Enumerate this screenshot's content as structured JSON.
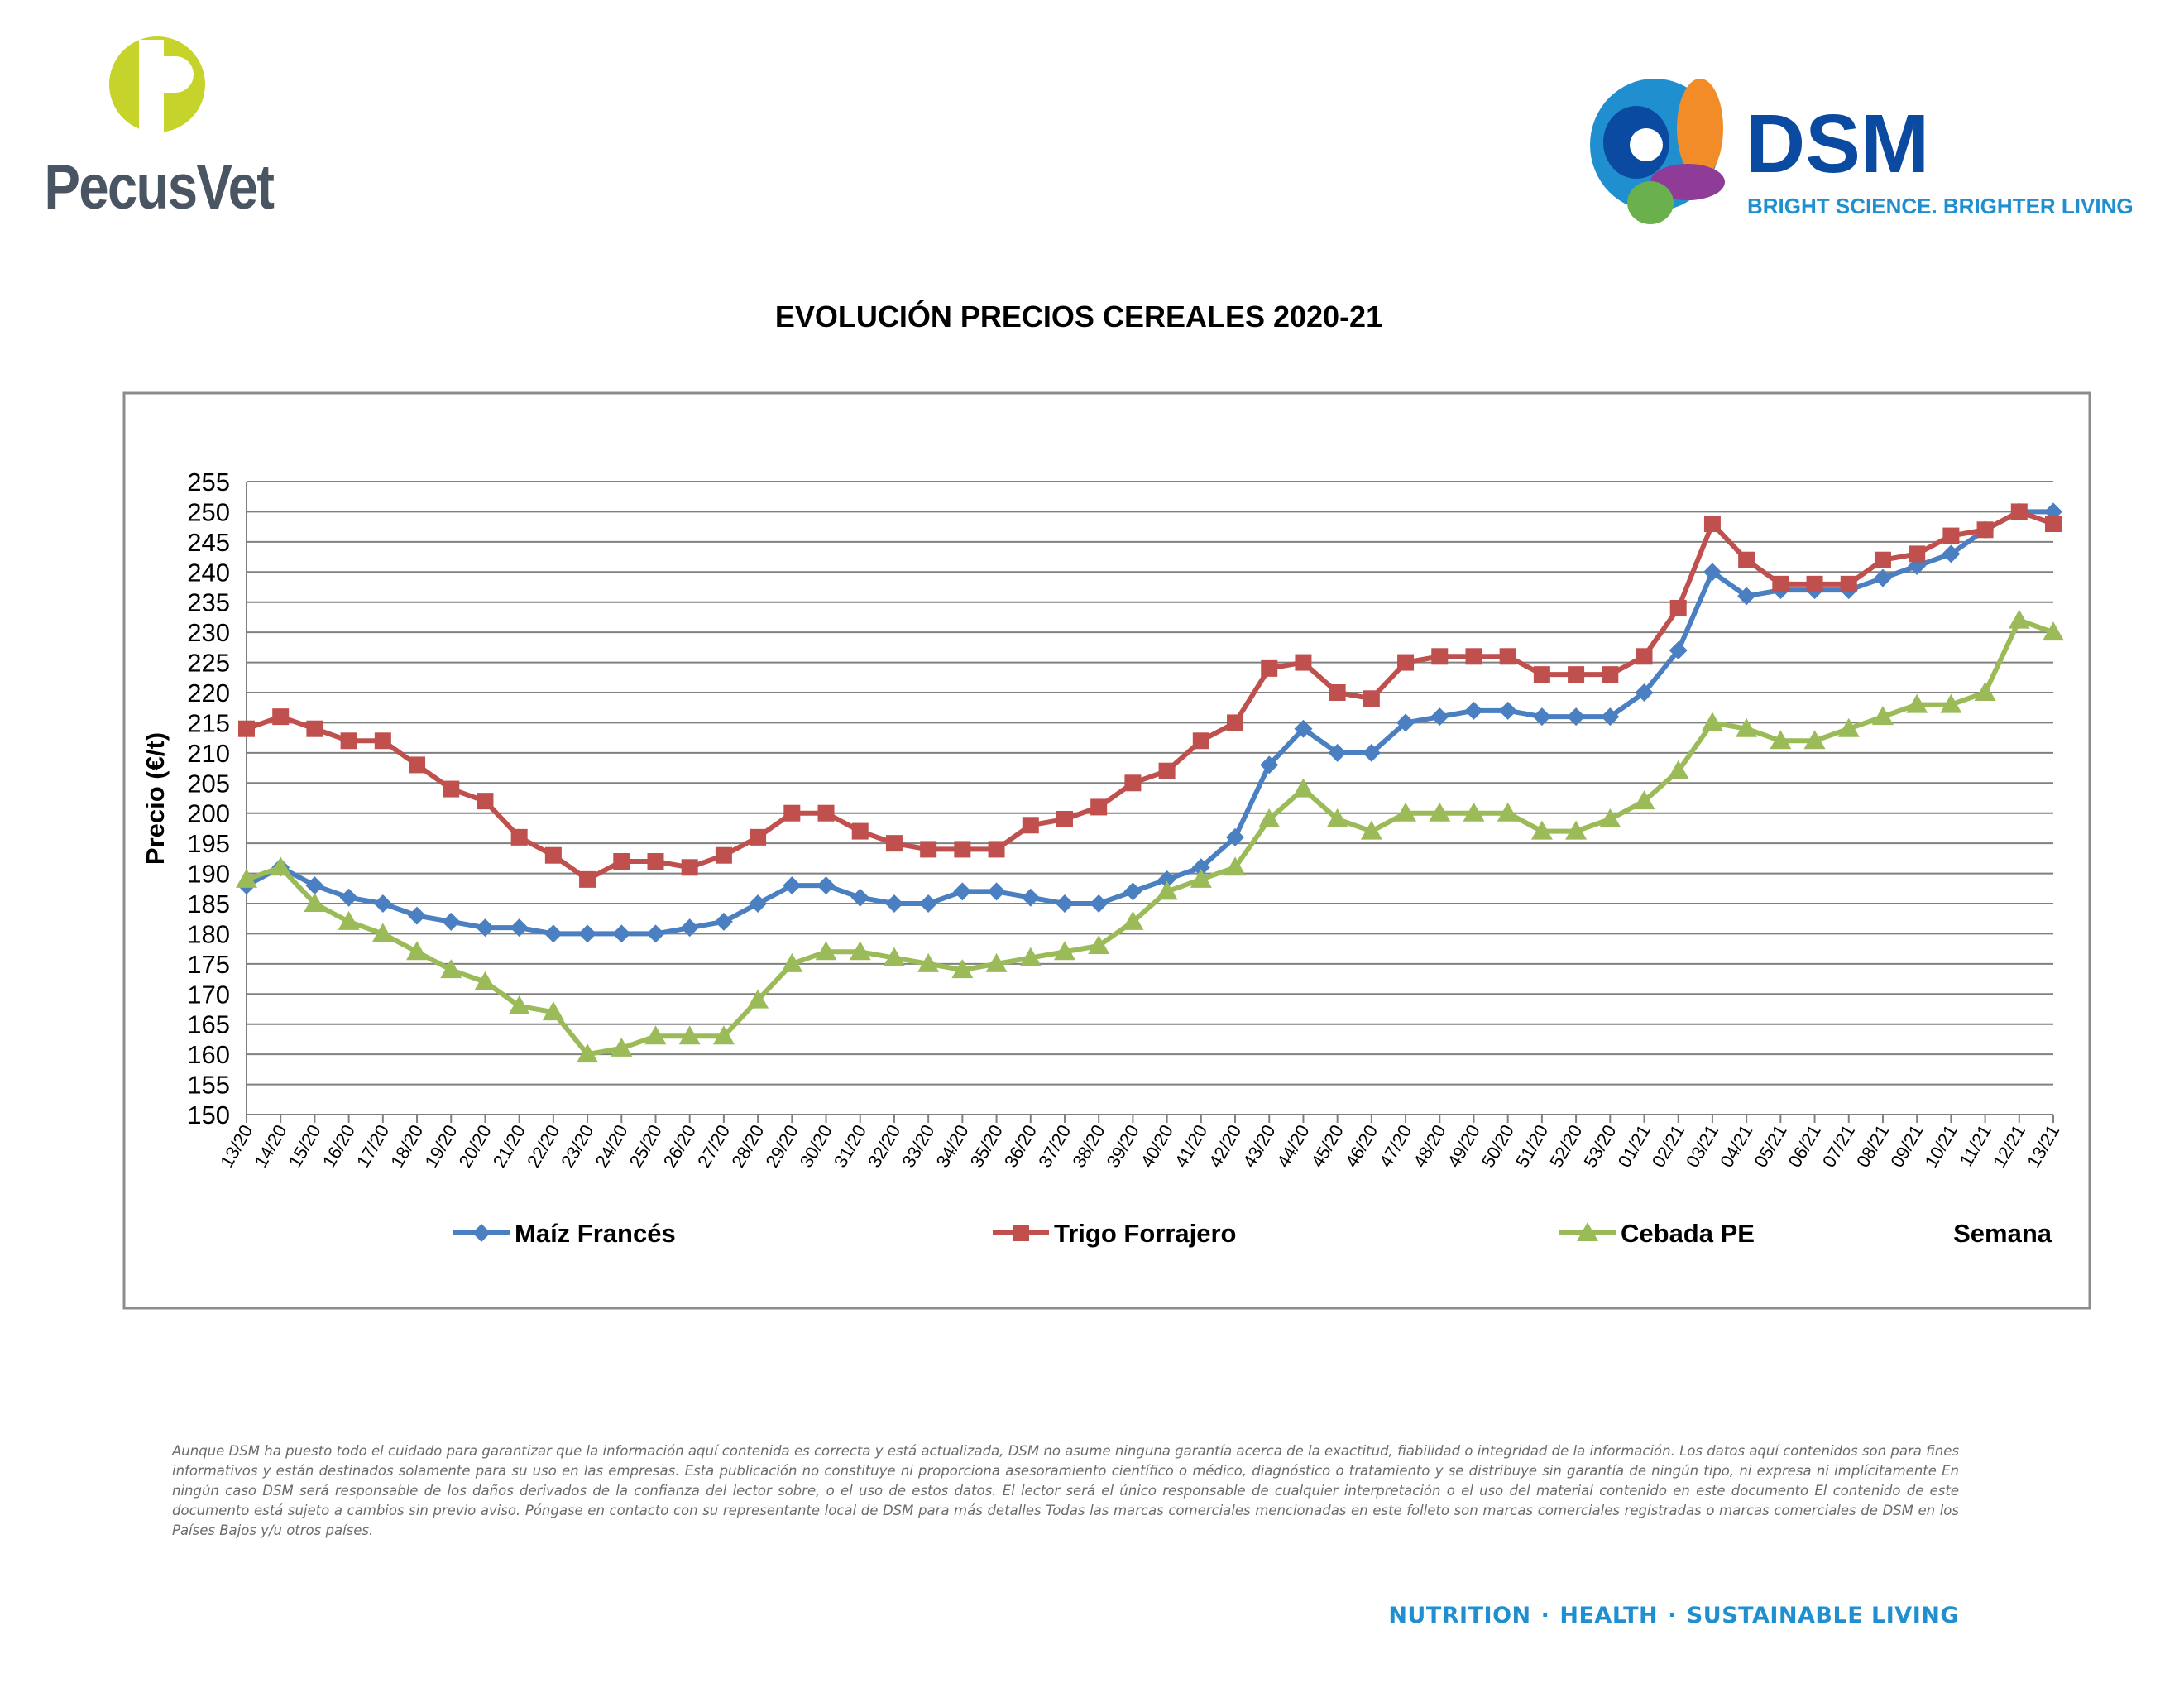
{
  "brand_left": {
    "name": "PecusVet",
    "letter": "P",
    "colors": {
      "green": "#c5d32a",
      "gray": "#4a5563"
    }
  },
  "brand_right": {
    "name": "DSM",
    "slogan": "BRIGHT SCIENCE. BRIGHTER LIVING.",
    "colors": {
      "blue": "#0a4aa0",
      "light_blue": "#1f8fd0"
    }
  },
  "chart_data": {
    "type": "line",
    "title": "EVOLUCIÓN PRECIOS CEREALES 2020-21",
    "ylabel": "Precio (€/t)",
    "xlabel": "Semana",
    "ylim": [
      150,
      255
    ],
    "ytick_step": 5,
    "grid": true,
    "legend_position": "bottom",
    "categories": [
      "13/20",
      "14/20",
      "15/20",
      "16/20",
      "17/20",
      "18/20",
      "19/20",
      "20/20",
      "21/20",
      "22/20",
      "23/20",
      "24/20",
      "25/20",
      "26/20",
      "27/20",
      "28/20",
      "29/20",
      "30/20",
      "31/20",
      "32/20",
      "33/20",
      "34/20",
      "35/20",
      "36/20",
      "37/20",
      "38/20",
      "39/20",
      "40/20",
      "41/20",
      "42/20",
      "43/20",
      "44/20",
      "45/20",
      "46/20",
      "47/20",
      "48/20",
      "49/20",
      "50/20",
      "51/20",
      "52/20",
      "53/20",
      "01/21",
      "02/21",
      "03/21",
      "04/21",
      "05/21",
      "06/21",
      "07/21",
      "08/21",
      "09/21",
      "10/21",
      "11/21",
      "12/21",
      "13/21"
    ],
    "series": [
      {
        "name": "Maíz Francés",
        "color": "#4a7fc1",
        "marker": "diamond",
        "values": [
          188,
          191,
          188,
          186,
          185,
          183,
          182,
          181,
          181,
          180,
          180,
          180,
          180,
          181,
          182,
          185,
          188,
          188,
          186,
          185,
          185,
          187,
          187,
          186,
          185,
          185,
          187,
          189,
          191,
          196,
          208,
          214,
          210,
          210,
          215,
          216,
          217,
          217,
          216,
          216,
          216,
          220,
          227,
          240,
          236,
          237,
          237,
          237,
          239,
          241,
          243,
          247,
          250,
          250
        ]
      },
      {
        "name": "Trigo Forrajero",
        "color": "#c0504d",
        "marker": "square",
        "values": [
          214,
          216,
          214,
          212,
          212,
          208,
          204,
          202,
          196,
          193,
          189,
          192,
          192,
          191,
          193,
          196,
          200,
          200,
          197,
          195,
          194,
          194,
          194,
          198,
          199,
          201,
          205,
          207,
          212,
          215,
          224,
          225,
          220,
          219,
          225,
          226,
          226,
          226,
          223,
          223,
          223,
          226,
          234,
          248,
          242,
          238,
          238,
          238,
          242,
          243,
          246,
          247,
          250,
          248
        ]
      },
      {
        "name": "Cebada PE",
        "color": "#9bbb59",
        "marker": "triangle",
        "values": [
          189,
          191,
          185,
          182,
          180,
          177,
          174,
          172,
          168,
          167,
          160,
          161,
          163,
          163,
          163,
          169,
          175,
          177,
          177,
          176,
          175,
          174,
          175,
          176,
          177,
          178,
          182,
          187,
          189,
          191,
          199,
          204,
          199,
          197,
          200,
          200,
          200,
          200,
          197,
          197,
          199,
          202,
          207,
          215,
          214,
          212,
          212,
          214,
          216,
          218,
          218,
          220,
          232,
          230
        ]
      }
    ]
  },
  "disclaimer": "Aunque DSM ha puesto todo el cuidado para garantizar que la información aquí contenida es correcta y está actualizada, DSM no asume ninguna garantía acerca de la exactitud, fiabilidad o integridad de la información. Los datos aquí contenidos son para fines informativos y están destinados solamente para su uso en las empresas. Esta publicación no constituye ni proporciona asesoramiento científico o médico, diagnóstico o tratamiento y se distribuye sin garantía de ningún tipo, ni expresa ni implícitamente En ningún caso DSM será responsable de los daños derivados de la confianza del lector sobre, o el uso de estos datos. El lector será el único responsable de cualquier interpretación o el uso del material contenido en este documento El contenido de este documento está sujeto a cambios sin previo aviso. Póngase en contacto con su representante local de DSM para más detalles Todas las marcas comerciales mencionadas en este folleto son marcas comerciales registradas o marcas comerciales de DSM en los Países Bajos y/u otros países.",
  "tagline": {
    "parts": [
      "NUTRITION",
      "HEALTH",
      "SUSTAINABLE LIVING"
    ],
    "separator": "·"
  }
}
